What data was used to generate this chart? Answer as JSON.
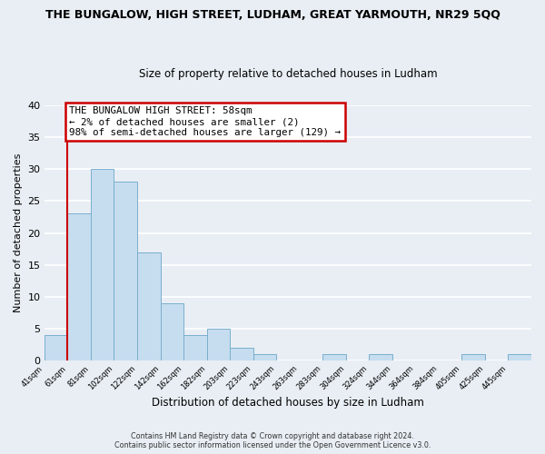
{
  "title": "THE BUNGALOW, HIGH STREET, LUDHAM, GREAT YARMOUTH, NR29 5QQ",
  "subtitle": "Size of property relative to detached houses in Ludham",
  "xlabel": "Distribution of detached houses by size in Ludham",
  "ylabel": "Number of detached properties",
  "bin_labels": [
    "41sqm",
    "61sqm",
    "81sqm",
    "102sqm",
    "122sqm",
    "142sqm",
    "162sqm",
    "182sqm",
    "203sqm",
    "223sqm",
    "243sqm",
    "263sqm",
    "283sqm",
    "304sqm",
    "324sqm",
    "344sqm",
    "364sqm",
    "384sqm",
    "405sqm",
    "425sqm",
    "445sqm"
  ],
  "bar_values": [
    4,
    23,
    30,
    28,
    17,
    9,
    4,
    5,
    2,
    1,
    0,
    0,
    1,
    0,
    1,
    0,
    0,
    0,
    1,
    0,
    1
  ],
  "bar_color": "#c6ddef",
  "bar_edge_color": "#7aafce",
  "marker_color": "#cc0000",
  "ylim": [
    0,
    40
  ],
  "yticks": [
    0,
    5,
    10,
    15,
    20,
    25,
    30,
    35,
    40
  ],
  "annotation_title": "THE BUNGALOW HIGH STREET: 58sqm",
  "annotation_line2": "← 2% of detached houses are smaller (2)",
  "annotation_line3": "98% of semi-detached houses are larger (129) →",
  "annotation_box_color": "#ffffff",
  "annotation_box_edge": "#cc0000",
  "footer_line1": "Contains HM Land Registry data © Crown copyright and database right 2024.",
  "footer_line2": "Contains public sector information licensed under the Open Government Licence v3.0.",
  "background_color": "#e8eef4",
  "plot_bg_color": "#e8eef4",
  "grid_color": "#ffffff",
  "title_fontsize": 9.0,
  "subtitle_fontsize": 8.5
}
